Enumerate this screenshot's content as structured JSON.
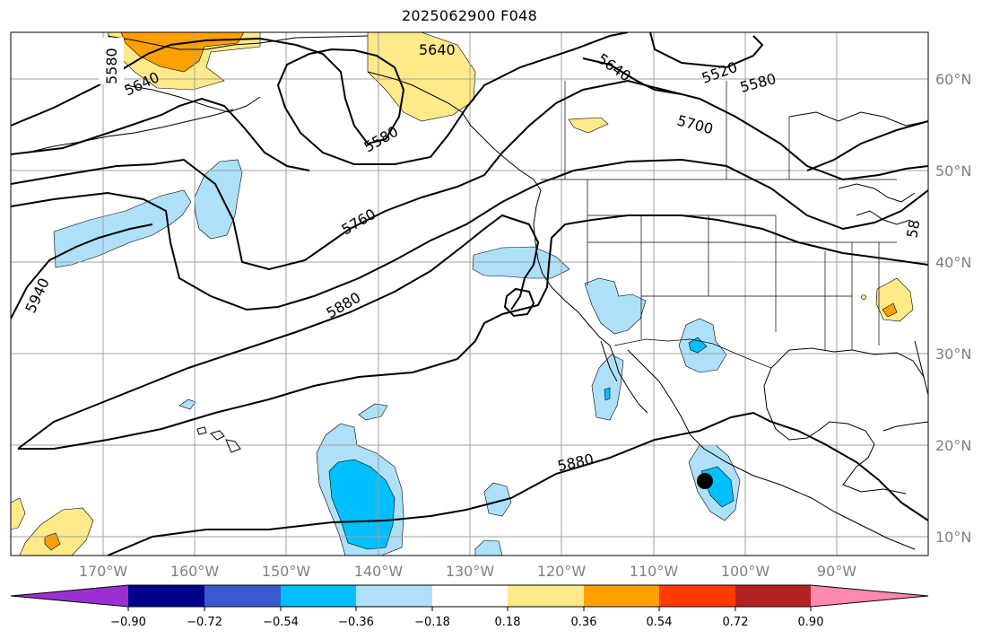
{
  "title": "2025062900 F048",
  "map": {
    "lat_labels": [
      "60°N",
      "50°N",
      "40°N",
      "30°N",
      "20°N",
      "10°N"
    ],
    "lon_labels": [
      "170°W",
      "160°W",
      "150°W",
      "140°W",
      "130°W",
      "120°W",
      "110°W",
      "100°W",
      "90°W"
    ],
    "contour_labels": [
      "5580",
      "5640",
      "5640",
      "5640",
      "5520",
      "5580",
      "5580",
      "5700",
      "5760",
      "5940",
      "5880",
      "5880",
      "58"
    ],
    "grid": true
  },
  "colorbar": {
    "ticks": [
      "−0.90",
      "−0.72",
      "−0.54",
      "−0.36",
      "−0.18",
      "0.18",
      "0.36",
      "0.54",
      "0.72",
      "0.90"
    ],
    "colors": [
      "#9b30d0",
      "#00008b",
      "#3a5bcf",
      "#00bfff",
      "#aee0fa",
      "#ffffff",
      "#ffea8a",
      "#ffa000",
      "#ff3b00",
      "#b22222",
      "#ff88b0"
    ]
  }
}
